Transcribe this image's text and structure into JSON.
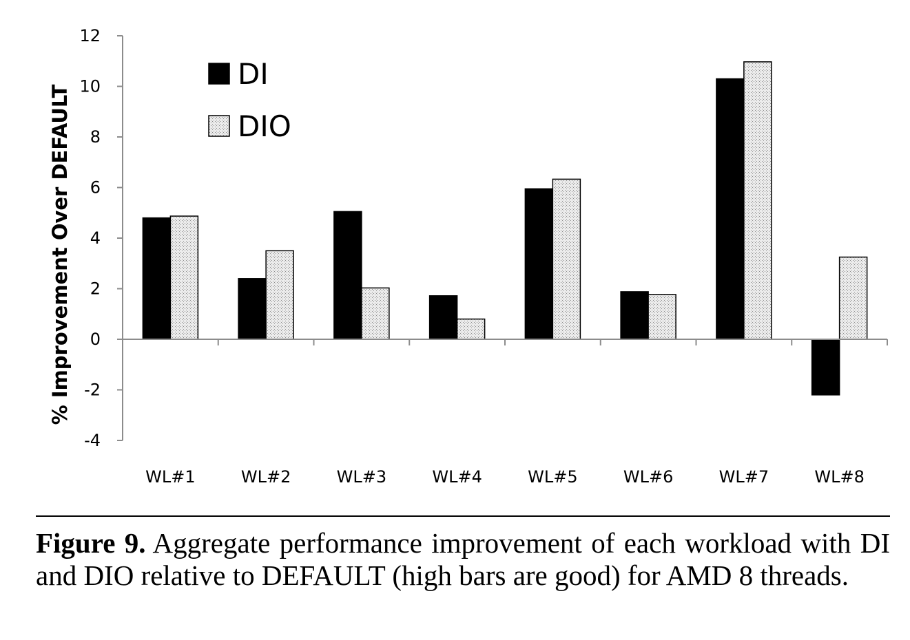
{
  "chart_data": {
    "type": "bar",
    "categories": [
      "WL#1",
      "WL#2",
      "WL#3",
      "WL#4",
      "WL#5",
      "WL#6",
      "WL#7",
      "WL#8"
    ],
    "series": [
      {
        "name": "DI",
        "values": [
          4.8,
          2.4,
          5.05,
          1.72,
          5.95,
          1.88,
          10.3,
          -2.2
        ]
      },
      {
        "name": "DIO",
        "values": [
          4.87,
          3.5,
          2.03,
          0.8,
          6.33,
          1.77,
          10.97,
          3.25
        ]
      }
    ],
    "title": "",
    "xlabel": "",
    "ylabel": "% Improvement Over DEFAULT",
    "ylim": [
      -4,
      12
    ],
    "yticks": [
      -4,
      -2,
      0,
      2,
      4,
      6,
      8,
      10,
      12
    ],
    "grid": false,
    "legend": "top-left",
    "colors": {
      "DI": "#000000",
      "DIO": "#dcdcdc"
    }
  },
  "caption": {
    "label": "Figure 9.",
    "text": "Aggregate performance improvement of each workload with DI and DIO relative to DEFAULT (high bars are good) for AMD 8 threads."
  }
}
